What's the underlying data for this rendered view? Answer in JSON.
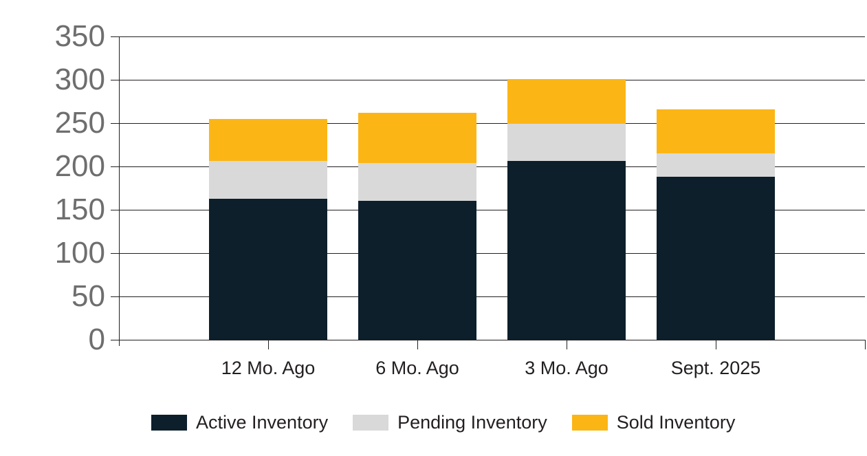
{
  "chart_data": {
    "type": "bar",
    "stacked": true,
    "title": "",
    "xlabel": "",
    "ylabel": "",
    "categories": [
      "12 Mo. Ago",
      "6 Mo. Ago",
      "3 Mo. Ago",
      "Sept. 2025"
    ],
    "series": [
      {
        "name": "Active Inventory",
        "color": "#0C1F2B",
        "values": [
          163,
          160,
          206,
          188
        ]
      },
      {
        "name": "Pending Inventory",
        "color": "#D9D9D9",
        "values": [
          43,
          44,
          43,
          27
        ]
      },
      {
        "name": "Sold Inventory",
        "color": "#FBB616",
        "values": [
          49,
          58,
          52,
          51
        ]
      }
    ],
    "stack_totals": [
      255,
      262,
      301,
      266
    ],
    "ylim": [
      0,
      350
    ],
    "ytick_interval": 50,
    "ytick_labels": [
      "0",
      "50",
      "100",
      "150",
      "200",
      "250",
      "300",
      "350"
    ],
    "grid": true,
    "gridline_color": "#231F20",
    "axis_label_color": "#6E6E6E",
    "text_color": "#231F20",
    "background_color": "#FFFFFF",
    "legend_position": "bottom"
  },
  "legend": {
    "items": [
      {
        "label": "Active Inventory",
        "color": "#0C1F2B"
      },
      {
        "label": "Pending Inventory",
        "color": "#D9D9D9"
      },
      {
        "label": "Sold Inventory",
        "color": "#FBB616"
      }
    ]
  }
}
